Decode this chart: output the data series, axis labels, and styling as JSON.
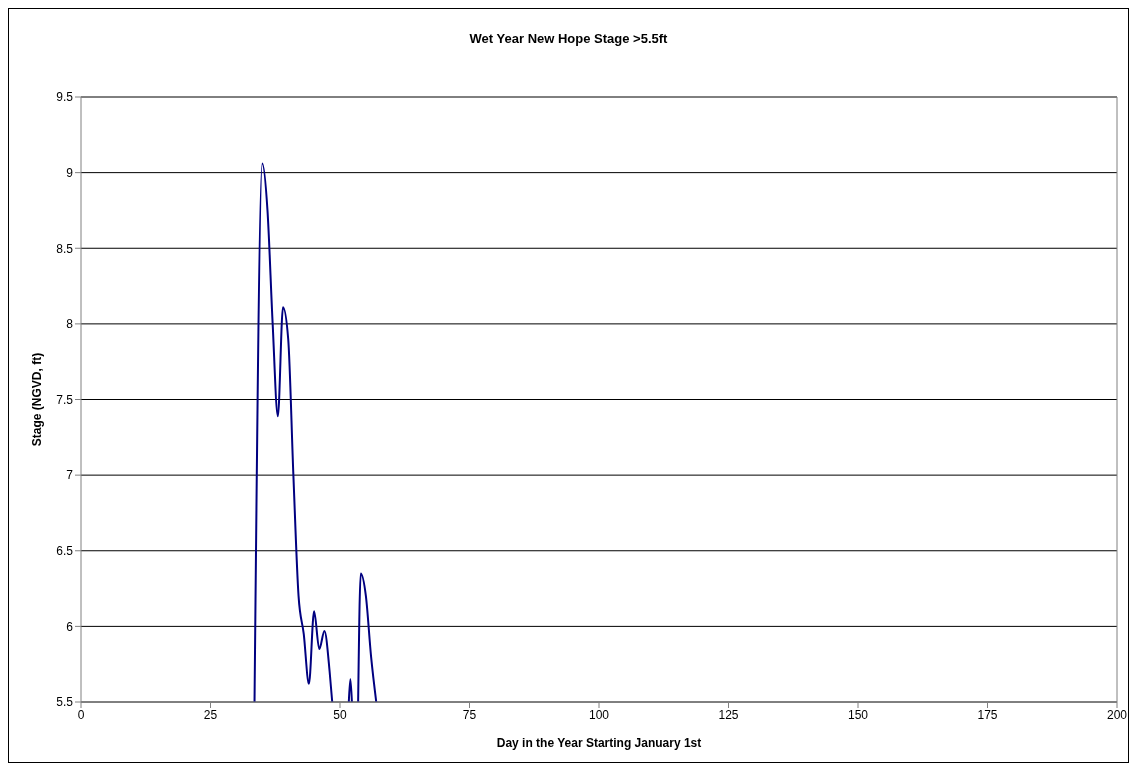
{
  "chart_data": {
    "type": "line",
    "title": "Wet Year New Hope Stage >5.5ft",
    "xlabel": "Day in the Year Starting January 1st",
    "ylabel": "Stage (NGVD, ft)",
    "x": [
      33.5,
      35,
      36,
      37,
      38,
      39,
      40,
      41,
      42,
      43,
      44,
      45,
      46,
      47,
      48,
      48.5,
      50,
      51.7,
      52,
      52.3,
      53,
      53.5,
      54,
      55,
      56,
      57
    ],
    "series": [
      {
        "color": "#000080",
        "values": [
          5.5,
          9.06,
          8.75,
          8.0,
          7.39,
          8.11,
          7.9,
          7.0,
          6.2,
          5.95,
          5.62,
          6.1,
          5.85,
          5.97,
          5.7,
          5.5,
          null,
          5.5,
          5.65,
          5.5,
          null,
          5.5,
          6.35,
          6.2,
          5.8,
          5.5
        ]
      }
    ],
    "xlim": [
      0,
      200
    ],
    "xticks": [
      0,
      25,
      50,
      75,
      100,
      125,
      150,
      175,
      200
    ],
    "ylim": [
      5.5,
      9.5
    ],
    "yticks": [
      5.5,
      6,
      6.5,
      7,
      7.5,
      8,
      8.5,
      9,
      9.5
    ],
    "grid": "y",
    "marker": "none",
    "line_style": "solid"
  }
}
